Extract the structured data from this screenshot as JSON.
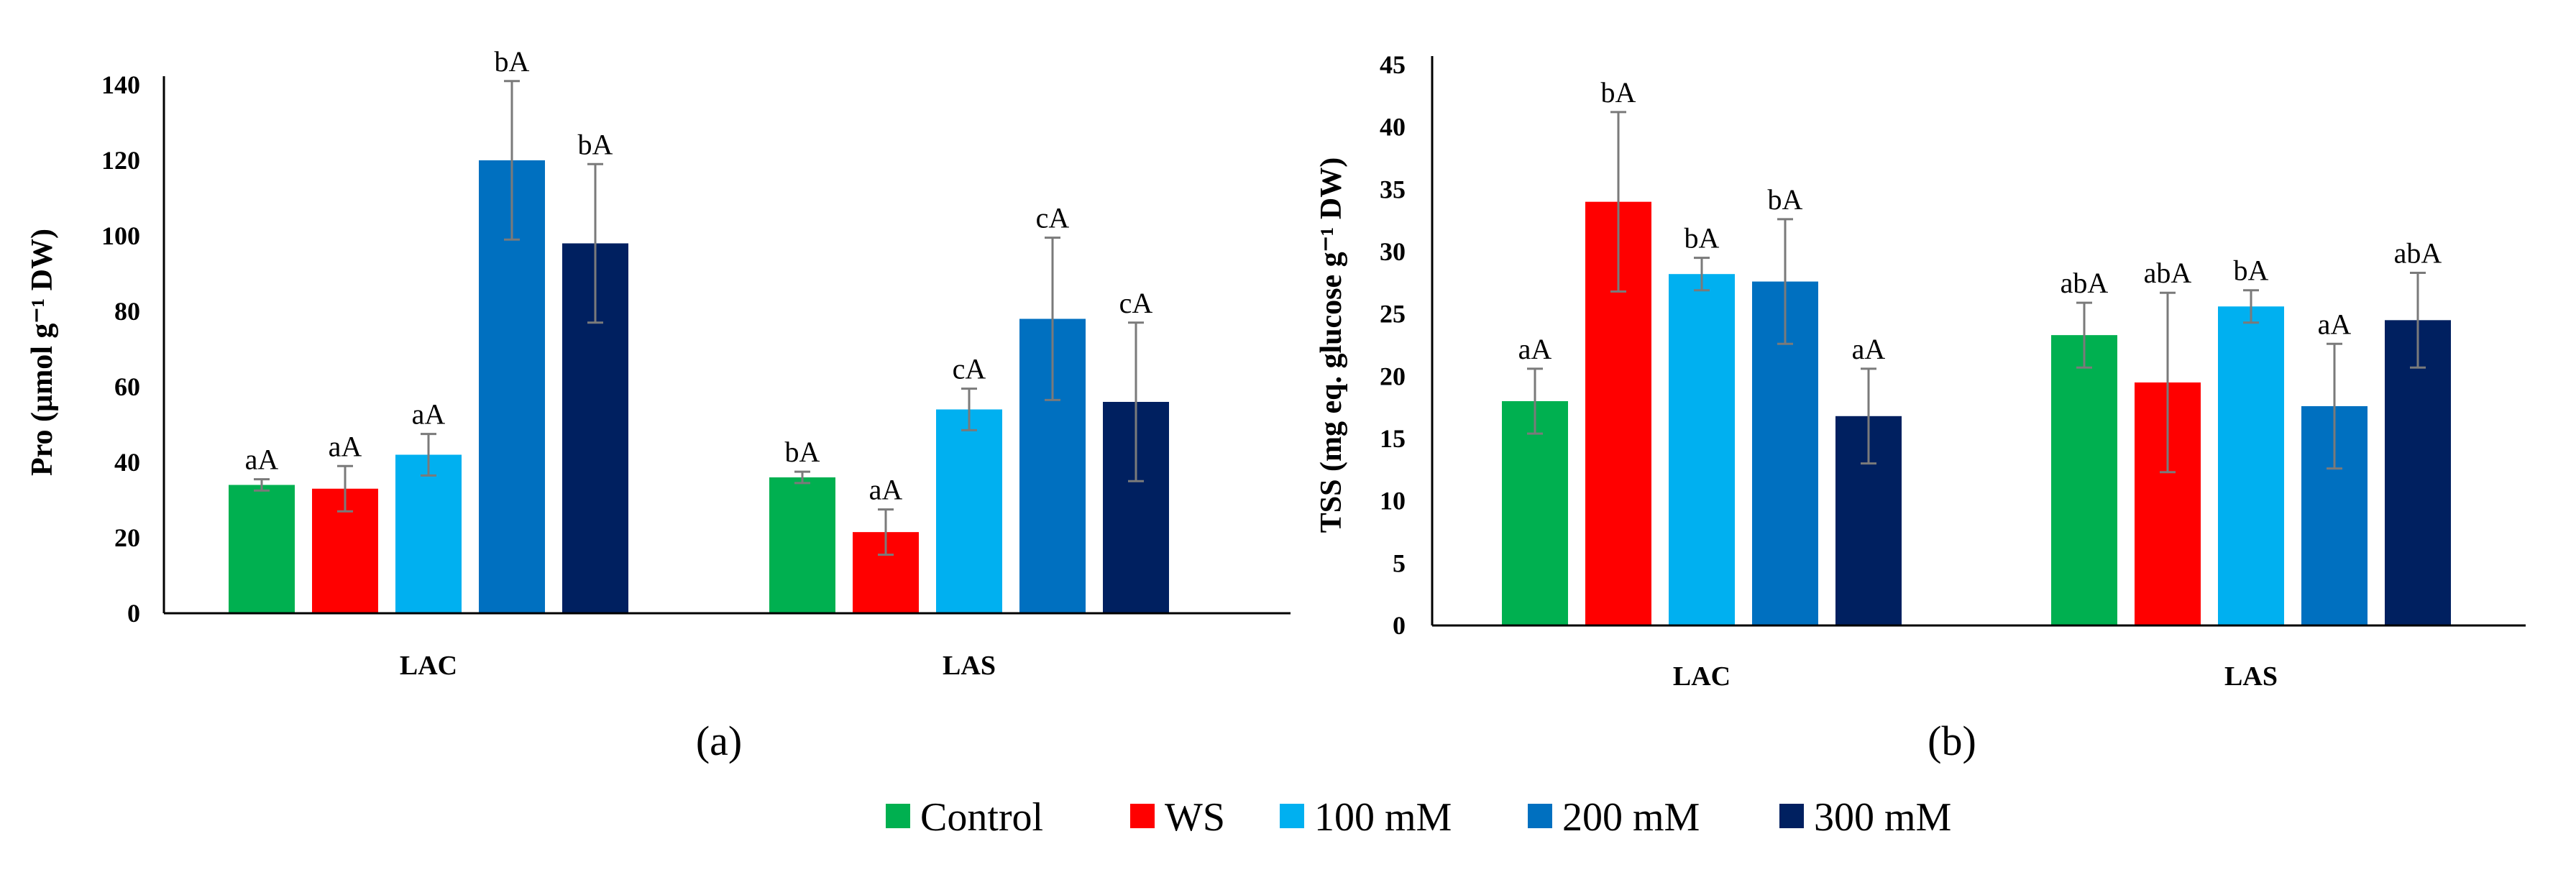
{
  "legend": [
    {
      "name": "Control",
      "color": "#00b050"
    },
    {
      "name": "WS",
      "color": "#ff0000"
    },
    {
      "name": "100 mM",
      "color": "#00b0f0"
    },
    {
      "name": "200 mM",
      "color": "#0070c0"
    },
    {
      "name": "300 mM",
      "color": "#002060"
    }
  ],
  "chart_data": [
    {
      "type": "bar",
      "panel_label": "(a)",
      "ylabel": "Pro (µmol g⁻¹ DW)",
      "ylim": [
        0,
        140
      ],
      "ytick_step": 20,
      "ytick_labels": [
        "0",
        "20",
        "40",
        "60",
        "80",
        "100",
        "120",
        "140"
      ],
      "categories": [
        "LAC",
        "LAS"
      ],
      "series": [
        {
          "name": "Control",
          "values": [
            34,
            36
          ],
          "errors": [
            1.5,
            1.5
          ],
          "labels": [
            "aA",
            "bA"
          ]
        },
        {
          "name": "WS",
          "values": [
            33,
            21.5
          ],
          "errors": [
            6,
            6
          ],
          "labels": [
            "aA",
            "aA"
          ]
        },
        {
          "name": "100 mM",
          "values": [
            42,
            54
          ],
          "errors": [
            5.5,
            5.5
          ],
          "labels": [
            "aA",
            "cA"
          ]
        },
        {
          "name": "200 mM",
          "values": [
            120,
            78
          ],
          "errors": [
            21,
            21.5
          ],
          "labels": [
            "bA",
            "cA"
          ]
        },
        {
          "name": "300 mM",
          "values": [
            98,
            56
          ],
          "errors": [
            21,
            21
          ],
          "labels": [
            "bA",
            "cA"
          ]
        }
      ]
    },
    {
      "type": "bar",
      "panel_label": "(b)",
      "ylabel": "TSS (mg eq. glucose g⁻¹ DW)",
      "ylim": [
        0,
        45
      ],
      "ytick_step": 5,
      "ytick_labels": [
        "0",
        "5",
        "10",
        "15",
        "20",
        "25",
        "30",
        "35",
        "40",
        "45"
      ],
      "categories": [
        "LAC",
        "LAS"
      ],
      "series": [
        {
          "name": "Control",
          "values": [
            18,
            23.3
          ],
          "errors": [
            2.6,
            2.6
          ],
          "labels": [
            "aA",
            "abA"
          ]
        },
        {
          "name": "WS",
          "values": [
            34,
            19.5
          ],
          "errors": [
            7.2,
            7.2
          ],
          "labels": [
            "bA",
            "abA"
          ]
        },
        {
          "name": "100 mM",
          "values": [
            28.2,
            25.6
          ],
          "errors": [
            1.3,
            1.3
          ],
          "labels": [
            "bA",
            "bA"
          ]
        },
        {
          "name": "200 mM",
          "values": [
            27.6,
            17.6
          ],
          "errors": [
            5,
            5
          ],
          "labels": [
            "bA",
            "aA"
          ]
        },
        {
          "name": "300 mM",
          "values": [
            16.8,
            24.5
          ],
          "errors": [
            3.8,
            3.8
          ],
          "labels": [
            "aA",
            "abA"
          ]
        }
      ]
    }
  ]
}
